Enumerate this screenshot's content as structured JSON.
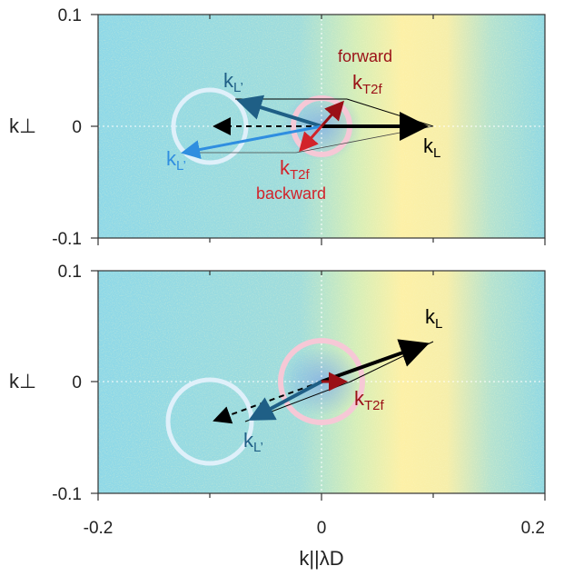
{
  "colors": {
    "bg_blue": "#7fd4e8",
    "bg_yellow": "#fdf0a0",
    "circle_light_blue": "#d8eef8",
    "circle_pink": "#f4c6d4",
    "laser_black": "#000000",
    "l_prime_dark_blue": "#1f5f86",
    "l_prime_light_blue": "#2f8ee0",
    "t2f_red": "#9a1016",
    "t2f_back_red": "#d2232a"
  },
  "panels": [
    {
      "id": "top",
      "ylabel": "k⊥",
      "xlim": [
        -0.2,
        0.2
      ],
      "ylim": [
        -0.1,
        0.1
      ],
      "yticks": [
        "0.1",
        "0",
        "-0.1"
      ],
      "labels": {
        "forward_word": "forward",
        "backward_word": "backward",
        "kt2f_forward": {
          "base": "k",
          "sub": "T2f"
        },
        "kt2f_backward": {
          "base": "k",
          "sub": "T2f"
        },
        "kL": {
          "base": "k",
          "sub": "L"
        },
        "kLprime_upper": {
          "base": "k",
          "sub": "L’"
        },
        "kLprime_lower": {
          "base": "k",
          "sub": "L’"
        }
      },
      "vectors": {
        "kL": [
          0.1,
          0.0
        ],
        "kT2f_forward": [
          0.023,
          0.024
        ],
        "kT2f_backward": [
          -0.023,
          -0.024
        ],
        "kLprime_forward": [
          -0.077,
          0.024
        ],
        "kLprime_backward": [
          -0.123,
          -0.024
        ],
        "dashed": [
          -0.1,
          0.0
        ]
      },
      "circles": {
        "pink_center": [
          0,
          0
        ],
        "pink_radius": 0.025,
        "blue_center": [
          -0.1,
          0
        ],
        "blue_radius": 0.032
      }
    },
    {
      "id": "bottom",
      "ylabel": "k⊥",
      "xlabel": "k||λD",
      "xlim": [
        -0.2,
        0.2
      ],
      "ylim": [
        -0.1,
        0.1
      ],
      "xticks": [
        "-0.2",
        "0",
        "0.2"
      ],
      "yticks": [
        "0.1",
        "0",
        "-0.1"
      ],
      "labels": {
        "kL": {
          "base": "k",
          "sub": "L"
        },
        "kT2f": {
          "base": "k",
          "sub": "T2f"
        },
        "kLprime": {
          "base": "k",
          "sub": "L’"
        }
      },
      "vectors": {
        "kL": [
          0.1,
          0.036
        ],
        "kT2f": [
          0.032,
          0.0
        ],
        "kLprime": [
          -0.068,
          -0.036
        ],
        "dashed": [
          -0.1,
          -0.036
        ]
      },
      "circles": {
        "pink_center": [
          0,
          0
        ],
        "pink_radius": 0.037,
        "blue_center": [
          -0.1,
          -0.036
        ],
        "blue_radius": 0.04
      }
    }
  ]
}
